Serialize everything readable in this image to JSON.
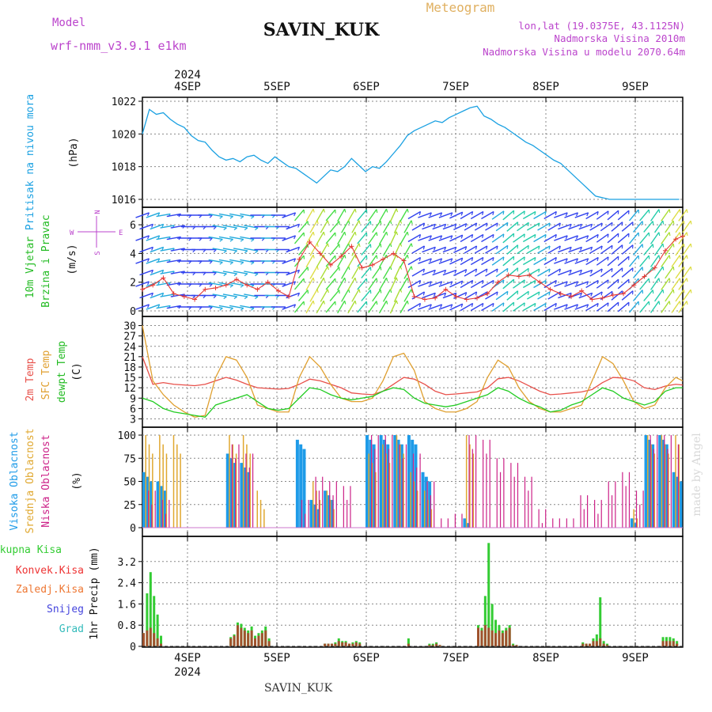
{
  "header": {
    "model_label": "Model",
    "model_name": "wrf-nmm_v3.9.1 e1km",
    "station": "SAVIN_KUK",
    "meteogram": "Meteogram",
    "lonlat": "lon,lat (19.0375E, 43.1125N)",
    "elevation": "Nadmorska Visina 2010m",
    "elevation_model": "Nadmorska Visina u modelu 2070.64m",
    "watermark": "made by Angel",
    "footer_station": "SAVIN_KUK"
  },
  "time_axis": {
    "year_label": "2024",
    "days": [
      "4SEP",
      "5SEP",
      "6SEP",
      "7SEP",
      "8SEP",
      "9SEP"
    ]
  },
  "colors": {
    "pressure": "#1ba1e2",
    "wind_speed": "#e53935",
    "temp_2m": "#e8504a",
    "temp_sfc": "#e0a030",
    "dewpoint": "#22cc22",
    "cloud_high": "#1e9be8",
    "cloud_mid": "#e0a830",
    "cloud_low": "#cc2288",
    "precip_total": "#33cc33",
    "precip_conv": "#ee3333",
    "precip_strat": "#ee7733",
    "precip_snow": "#4444dd",
    "precip_hail": "#33bbbb",
    "label_magenta": "#bb44cc"
  },
  "panels": {
    "pressure": {
      "ylabel": "Pritisak na nivou mora",
      "unit": "(hPa)",
      "ticks": [
        "1016",
        "1018",
        "1020",
        "1022"
      ]
    },
    "wind": {
      "ylabel1": "10m Vjetar",
      "ylabel2": "Brzina i Pravac",
      "unit": "(m/s)",
      "ticks": [
        "0",
        "2",
        "4",
        "6"
      ],
      "compass_n": "N",
      "compass_s": "S",
      "compass_w": "W",
      "compass_e": "E"
    },
    "temperature": {
      "ylabel1": "2m Temp",
      "ylabel2": "SFC Temp",
      "ylabel3": "dewpt Temp",
      "unit": "(C)",
      "ticks": [
        "3",
        "6",
        "9",
        "12",
        "15",
        "18",
        "21",
        "24",
        "27",
        "30"
      ]
    },
    "clouds": {
      "ylabel1": "Visoka Oblacnost",
      "ylabel2": "Srednja Oblacnost",
      "ylabel3": "Niska Oblacnost",
      "unit": "(%)",
      "ticks": [
        "0",
        "25",
        "50",
        "75",
        "100"
      ]
    },
    "precip": {
      "legend": [
        "Ukupna Kisa",
        "Konvek.Kisa",
        "Zaledj.Kisa",
        "Snijeg",
        "Grad"
      ],
      "ylabel": "1hr Precip (mm)",
      "ticks": [
        "0",
        "0.8",
        "1.6",
        "2.4",
        "3.2"
      ]
    }
  },
  "chart_data": [
    {
      "type": "line",
      "name": "pressure",
      "x_unit": "hours since 3SEP 12UTC",
      "x": [
        0,
        2,
        4,
        6,
        8,
        10,
        12,
        14,
        16,
        18,
        20,
        22,
        24,
        26,
        28,
        30,
        32,
        34,
        36,
        38,
        40,
        42,
        44,
        46,
        48,
        50,
        52,
        54,
        56,
        58,
        60,
        62,
        64,
        66,
        68,
        70,
        72,
        74,
        76,
        78,
        80,
        82,
        84,
        86,
        88,
        90,
        92,
        94,
        96,
        98,
        100,
        102,
        104,
        106,
        108,
        110,
        112,
        114,
        116,
        118,
        120,
        122,
        124,
        126,
        128,
        130,
        132,
        134,
        136,
        138,
        140,
        142,
        144,
        146,
        148,
        150,
        152,
        154
      ],
      "values": [
        1020.0,
        1021.5,
        1021.2,
        1021.3,
        1020.9,
        1020.6,
        1020.4,
        1019.9,
        1019.6,
        1019.5,
        1019.0,
        1018.6,
        1018.4,
        1018.5,
        1018.3,
        1018.6,
        1018.7,
        1018.4,
        1018.2,
        1018.6,
        1018.3,
        1018.0,
        1017.9,
        1017.6,
        1017.3,
        1017.0,
        1017.4,
        1017.8,
        1017.7,
        1018.0,
        1018.5,
        1018.1,
        1017.7,
        1018.0,
        1017.9,
        1018.3,
        1018.8,
        1019.3,
        1019.9,
        1020.2,
        1020.4,
        1020.6,
        1020.8,
        1020.7,
        1021.0,
        1021.2,
        1021.4,
        1021.6,
        1021.7,
        1021.1,
        1020.9,
        1020.6,
        1020.4,
        1020.1,
        1019.8,
        1019.5,
        1019.3,
        1019.0,
        1018.7,
        1018.4,
        1018.2,
        1017.8,
        1017.4,
        1017.0,
        1016.6,
        1016.2,
        1016.1,
        1016.0,
        1016.0,
        1016.0,
        1016.0,
        1016.0,
        1016.0,
        1016.0,
        1016.0,
        1016.0,
        1016.0,
        1016.0
      ],
      "ylim": [
        1016,
        1022
      ]
    },
    {
      "type": "line",
      "name": "wind",
      "x": [
        0,
        3,
        6,
        9,
        12,
        15,
        18,
        21,
        24,
        27,
        30,
        33,
        36,
        39,
        42,
        45,
        48,
        51,
        54,
        57,
        60,
        63,
        66,
        69,
        72,
        75,
        78,
        81,
        84,
        87,
        90,
        93,
        96,
        99,
        102,
        105,
        108,
        111,
        114,
        117,
        120,
        123,
        126,
        129,
        132,
        135,
        138,
        141,
        144,
        147,
        150,
        153,
        155
      ],
      "speed": [
        1.5,
        1.8,
        2.3,
        1.2,
        1.0,
        0.8,
        1.5,
        1.6,
        1.8,
        2.2,
        1.8,
        1.5,
        2.0,
        1.4,
        1.0,
        3.6,
        4.8,
        4.0,
        3.2,
        3.8,
        4.5,
        3.0,
        3.2,
        3.6,
        4.0,
        3.5,
        1.0,
        0.8,
        0.9,
        1.5,
        1.0,
        0.8,
        0.9,
        1.2,
        2.0,
        2.5,
        2.4,
        2.5,
        2.0,
        1.5,
        1.2,
        1.0,
        1.4,
        0.8,
        0.9,
        1.1,
        1.2,
        1.8,
        2.4,
        3.0,
        4.2,
        5.0,
        5.2
      ],
      "direction_deg": [
        250,
        250,
        260,
        260,
        270,
        270,
        270,
        280,
        280,
        280,
        280,
        270,
        270,
        270,
        250,
        220,
        210,
        210,
        220,
        210,
        210,
        220,
        215,
        210,
        205,
        210,
        240,
        250,
        250,
        250,
        245,
        240,
        240,
        240,
        235,
        230,
        235,
        240,
        240,
        240,
        250,
        250,
        250,
        240,
        235,
        230,
        230,
        220,
        220,
        215,
        215,
        215,
        215
      ],
      "ylim": [
        0,
        7
      ]
    },
    {
      "type": "line",
      "name": "temperature",
      "x": [
        0,
        3,
        6,
        9,
        12,
        15,
        18,
        21,
        24,
        27,
        30,
        33,
        36,
        39,
        42,
        45,
        48,
        51,
        54,
        57,
        60,
        63,
        66,
        69,
        72,
        75,
        78,
        81,
        84,
        87,
        90,
        93,
        96,
        99,
        102,
        105,
        108,
        111,
        114,
        117,
        120,
        123,
        126,
        129,
        132,
        135,
        138,
        141,
        144,
        147,
        150,
        153,
        155
      ],
      "series": [
        {
          "name": "2m Temp",
          "values": [
            21,
            13,
            13.5,
            13,
            12.8,
            12.6,
            13,
            14,
            15,
            14.2,
            13,
            12,
            11.8,
            11.6,
            11.8,
            13,
            14.5,
            14,
            13,
            12,
            10.5,
            10.2,
            10,
            11,
            13,
            15,
            14.5,
            13,
            11,
            10,
            10.2,
            10.5,
            10.8,
            12,
            14.6,
            15,
            14,
            12.5,
            11,
            10,
            10.2,
            10.5,
            10.8,
            11.5,
            13.5,
            15,
            14.8,
            14,
            12,
            11.5,
            12.5,
            13,
            12.8
          ]
        },
        {
          "name": "SFC Temp",
          "values": [
            30,
            14,
            10,
            7,
            5,
            3.5,
            4,
            15,
            21,
            20,
            15,
            7,
            6,
            5,
            5,
            15,
            21,
            18,
            13,
            9,
            8,
            8,
            9,
            14,
            21,
            22,
            17,
            8,
            6,
            5,
            5,
            6,
            8,
            15,
            20,
            18,
            12,
            8,
            6,
            5,
            5,
            6,
            7,
            14,
            21,
            19,
            14,
            8,
            6,
            7,
            12,
            15,
            14
          ]
        },
        {
          "name": "dewpt Temp",
          "values": [
            9,
            8,
            6,
            5,
            4.5,
            4,
            3.5,
            7,
            8,
            9,
            10,
            8,
            6,
            5.5,
            6,
            9,
            12,
            11.5,
            10,
            9,
            8.5,
            9,
            9.5,
            11,
            12,
            11.5,
            9,
            7.5,
            7,
            6.5,
            7,
            8,
            9,
            10,
            12,
            11,
            9,
            7.5,
            6.5,
            5,
            5.5,
            7,
            8,
            10,
            12,
            11,
            9,
            8,
            7,
            8,
            11,
            12,
            12
          ]
        }
      ],
      "ylim": [
        1.5,
        31.5
      ]
    },
    {
      "type": "bar",
      "name": "clouds",
      "x": [
        0,
        4,
        8,
        12,
        16,
        20,
        24,
        28,
        32,
        36,
        40,
        44,
        48,
        52,
        56,
        60,
        64,
        68,
        72,
        76,
        80,
        84,
        88,
        92,
        96,
        100,
        104,
        108,
        112,
        116,
        120,
        124,
        128,
        132,
        136,
        140,
        144,
        148,
        152
      ],
      "series": [
        {
          "name": "Visoka Oblacnost",
          "values": [
            60,
            50,
            0,
            0,
            0,
            0,
            80,
            70,
            0,
            0,
            0,
            95,
            30,
            40,
            0,
            0,
            100,
            100,
            100,
            100,
            60,
            0,
            0,
            10,
            0,
            0,
            0,
            0,
            0,
            0,
            0,
            0,
            0,
            0,
            0,
            10,
            100,
            100,
            60
          ]
        },
        {
          "name": "Srednja Oblacnost",
          "values": [
            100,
            100,
            100,
            0,
            0,
            0,
            100,
            100,
            40,
            0,
            0,
            0,
            50,
            40,
            0,
            0,
            80,
            90,
            100,
            60,
            40,
            0,
            0,
            100,
            0,
            0,
            0,
            0,
            0,
            0,
            0,
            0,
            0,
            0,
            0,
            20,
            100,
            100,
            100
          ]
        },
        {
          "name": "Niska Oblacnost",
          "values": [
            40,
            30,
            0,
            0,
            0,
            0,
            90,
            80,
            0,
            0,
            0,
            30,
            55,
            50,
            45,
            0,
            100,
            100,
            90,
            80,
            50,
            10,
            15,
            100,
            95,
            75,
            70,
            55,
            20,
            10,
            10,
            35,
            30,
            50,
            60,
            40,
            100,
            100,
            90
          ]
        }
      ],
      "ylim": [
        0,
        100
      ]
    },
    {
      "type": "bar",
      "name": "precip",
      "x": [
        0,
        1,
        2,
        3,
        4,
        5,
        25,
        26,
        27,
        28,
        29,
        30,
        31,
        32,
        33,
        34,
        35,
        36,
        52,
        53,
        54,
        55,
        56,
        57,
        58,
        59,
        60,
        61,
        62,
        76,
        82,
        83,
        84,
        85,
        96,
        97,
        98,
        99,
        100,
        101,
        102,
        103,
        104,
        105,
        106,
        107,
        126,
        127,
        128,
        129,
        130,
        131,
        132,
        133,
        149,
        150,
        151,
        152,
        153
      ],
      "series": [
        {
          "name": "Ukupna Kisa",
          "values": [
            0.5,
            2.0,
            2.8,
            1.9,
            1.2,
            0.4,
            0.35,
            0.45,
            0.9,
            0.85,
            0.7,
            0.6,
            0.75,
            0.4,
            0.5,
            0.6,
            0.75,
            0.3,
            0.1,
            0.1,
            0.1,
            0.15,
            0.3,
            0.2,
            0.2,
            0.1,
            0.15,
            0.2,
            0.15,
            0.3,
            0.1,
            0.1,
            0.15,
            0.05,
            0.8,
            0.7,
            1.9,
            3.9,
            1.6,
            1.0,
            0.8,
            0.6,
            0.7,
            0.8,
            0.1,
            0.05,
            0.15,
            0.1,
            0.1,
            0.3,
            0.45,
            1.85,
            0.2,
            0.1,
            0.35,
            0.35,
            0.35,
            0.3,
            0.2
          ]
        },
        {
          "name": "Konvek.Kisa",
          "values": [
            0.5,
            0.6,
            0.7,
            0.5,
            0.3,
            0.1,
            0.3,
            0.4,
            0.8,
            0.7,
            0.6,
            0.5,
            0.6,
            0.3,
            0.4,
            0.5,
            0.6,
            0.2,
            0.1,
            0.1,
            0.1,
            0.1,
            0.2,
            0.15,
            0.15,
            0.1,
            0.1,
            0.15,
            0.1,
            0.1,
            0.05,
            0.05,
            0.1,
            0.05,
            0.7,
            0.6,
            0.8,
            0.7,
            0.6,
            0.5,
            0.6,
            0.5,
            0.6,
            0.7,
            0.05,
            0.05,
            0.1,
            0.1,
            0.1,
            0.2,
            0.2,
            0.3,
            0.1,
            0.05,
            0.2,
            0.2,
            0.2,
            0.2,
            0.1
          ]
        }
      ],
      "ylim": [
        0,
        4.0
      ]
    }
  ]
}
